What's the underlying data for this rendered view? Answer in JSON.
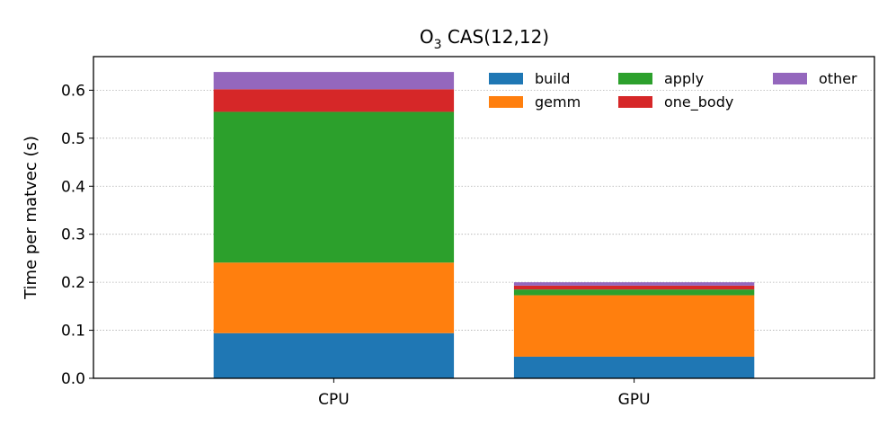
{
  "chart_data": {
    "type": "bar",
    "stacked": true,
    "title_main": "O",
    "title_sub": "3",
    "title_rest": " CAS(12,12)",
    "ylabel": "Time per matvec (s)",
    "xlabel": "",
    "categories": [
      "CPU",
      "GPU"
    ],
    "ylim": [
      0,
      0.67
    ],
    "yticks": [
      0.0,
      0.1,
      0.2,
      0.3,
      0.4,
      0.5,
      0.6
    ],
    "ytick_labels": [
      "0.0",
      "0.1",
      "0.2",
      "0.3",
      "0.4",
      "0.5",
      "0.6"
    ],
    "grid": "horizontal dotted",
    "legend_position": "top-right",
    "series": [
      {
        "name": "build",
        "color": "#1f77b4",
        "values": [
          0.094,
          0.045
        ]
      },
      {
        "name": "gemm",
        "color": "#ff7f0e",
        "values": [
          0.147,
          0.128
        ]
      },
      {
        "name": "apply",
        "color": "#2ca02c",
        "values": [
          0.314,
          0.012
        ]
      },
      {
        "name": "one_body",
        "color": "#d62728",
        "values": [
          0.047,
          0.008
        ]
      },
      {
        "name": "other",
        "color": "#9467bd",
        "values": [
          0.036,
          0.007
        ]
      }
    ]
  }
}
